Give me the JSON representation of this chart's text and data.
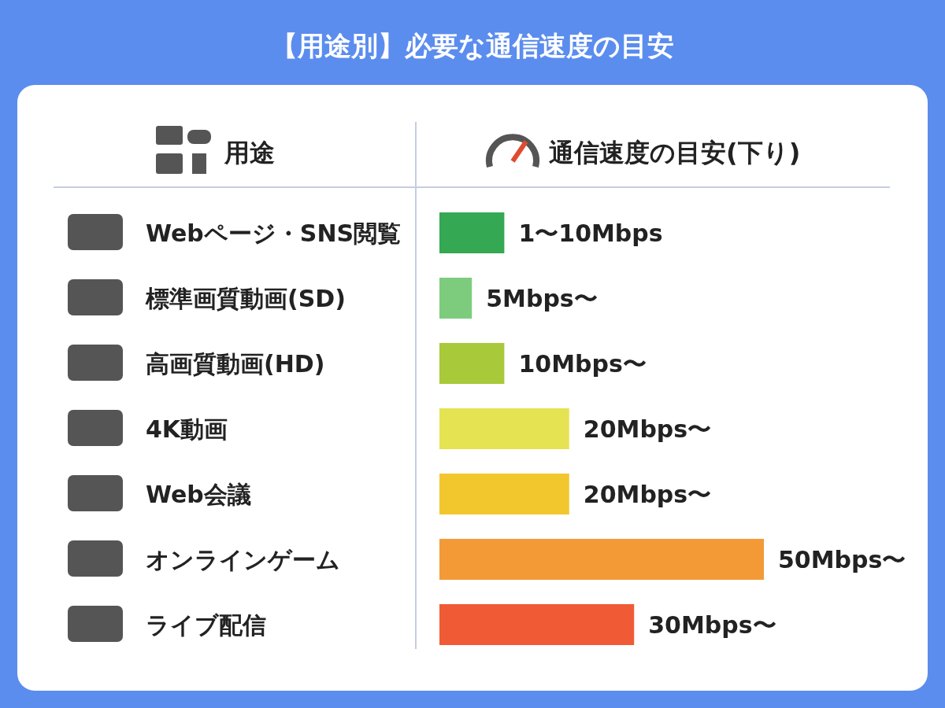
{
  "chart_data": {
    "type": "bar",
    "orientation": "horizontal",
    "title": "【用途別】必要な通信速度の目安",
    "ylabel": "用途",
    "xlabel": "通信速度の目安(下り)",
    "categories": [
      "Webページ・SNS閲覧",
      "標準画質動画(SD)",
      "高画質動画(HD)",
      "4K動画",
      "Web会議",
      "オンラインゲーム",
      "ライブ配信"
    ],
    "values": [
      10,
      5,
      10,
      20,
      20,
      50,
      30
    ],
    "colors": [
      "#34a853",
      "#7dcc7d",
      "#a8c93a",
      "#e5e352",
      "#f2c72e",
      "#f39a36",
      "#f05a35"
    ],
    "value_labels": [
      "1〜10Mbps",
      "5Mbps〜",
      "10Mbps〜",
      "20Mbps〜",
      "20Mbps〜",
      "50Mbps〜",
      "30Mbps〜"
    ]
  }
}
